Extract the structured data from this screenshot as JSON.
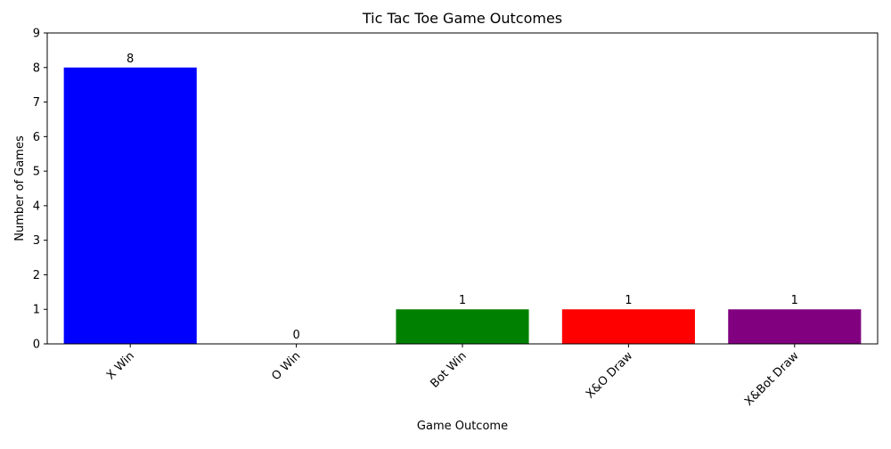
{
  "chart_data": {
    "type": "bar",
    "title": "Tic Tac Toe Game Outcomes",
    "xlabel": "Game Outcome",
    "ylabel": "Number of Games",
    "categories": [
      "X Win",
      "O Win",
      "Bot Win",
      "X&O Draw",
      "X&Bot Draw"
    ],
    "values": [
      8,
      0,
      1,
      1,
      1
    ],
    "colors": [
      "#0000ff",
      "#0000ff",
      "#008000",
      "#ff0000",
      "#800080"
    ],
    "ylim": [
      0,
      9
    ],
    "yticks": [
      0,
      1,
      2,
      3,
      4,
      5,
      6,
      7,
      8,
      9
    ],
    "xtick_rotation_deg": 45,
    "grid": false,
    "data_labels": true
  }
}
